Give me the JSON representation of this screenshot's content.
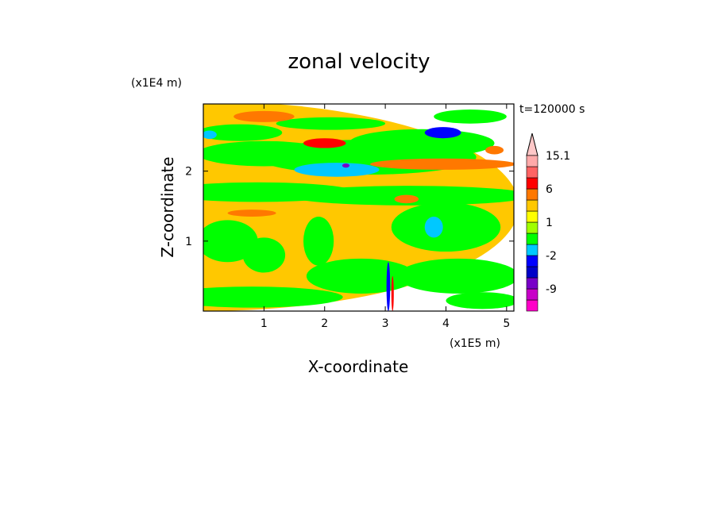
{
  "chart_data": {
    "type": "heatmap",
    "title": "zonal velocity",
    "time_label": "t=120000 s",
    "xlabel": "X-coordinate",
    "ylabel": "Z-coordinate",
    "x_unit": "(x1E5 m)",
    "y_unit": "(x1E4 m)",
    "xlim": [
      0,
      5.12
    ],
    "ylim": [
      0,
      2.96
    ],
    "x_ticks": [
      1,
      2,
      3,
      4,
      5
    ],
    "y_ticks": [
      1,
      2
    ],
    "colorbar": {
      "levels": [
        -12,
        -10.5,
        -9,
        -6.6,
        -4.5,
        -2,
        -1,
        0,
        1,
        2,
        4.5,
        6,
        8.5,
        12,
        15.1
      ],
      "colors": [
        "#ff00c8",
        "#c800c8",
        "#7800c8",
        "#0000c8",
        "#0000ff",
        "#00c8ff",
        "#00ff00",
        "#a0ff00",
        "#ffff00",
        "#ffc800",
        "#ff7800",
        "#ff0000",
        "#ff6464",
        "#ffaaaa",
        "#ffc8c8"
      ],
      "labeled_ticks": [
        "15.1",
        "6",
        "1",
        "-2",
        "-9"
      ]
    },
    "regions": [
      {
        "x": 0.0,
        "z": 1.5,
        "rx": 5.2,
        "rz": 1.5,
        "value": 1.5
      },
      {
        "x": 0.6,
        "z": 2.55,
        "rx": 0.7,
        "rz": 0.12,
        "value": -1.5
      },
      {
        "x": 2.1,
        "z": 2.68,
        "rx": 0.9,
        "rz": 0.09,
        "value": -1.5
      },
      {
        "x": 4.4,
        "z": 2.78,
        "rx": 0.6,
        "rz": 0.1,
        "value": -1.5
      },
      {
        "x": 3.6,
        "z": 2.4,
        "rx": 1.2,
        "rz": 0.2,
        "value": -1.5
      },
      {
        "x": 2.7,
        "z": 2.2,
        "rx": 1.8,
        "rz": 0.25,
        "value": -1.5
      },
      {
        "x": 1.0,
        "z": 2.25,
        "rx": 1.1,
        "rz": 0.18,
        "value": -1.5
      },
      {
        "x": 2.2,
        "z": 2.02,
        "rx": 0.7,
        "rz": 0.1,
        "value": -3
      },
      {
        "x": 2.35,
        "z": 2.08,
        "rx": 0.06,
        "rz": 0.03,
        "value": -10
      },
      {
        "x": 0.1,
        "z": 2.52,
        "rx": 0.12,
        "rz": 0.06,
        "value": -3
      },
      {
        "x": 3.95,
        "z": 2.55,
        "rx": 0.3,
        "rz": 0.08,
        "value": -5
      },
      {
        "x": 0.9,
        "z": 1.7,
        "rx": 1.6,
        "rz": 0.14,
        "value": -1.5
      },
      {
        "x": 3.4,
        "z": 1.65,
        "rx": 2.0,
        "rz": 0.14,
        "value": -1.5
      },
      {
        "x": 4.0,
        "z": 1.2,
        "rx": 0.9,
        "rz": 0.35,
        "value": -1.5
      },
      {
        "x": 3.8,
        "z": 1.2,
        "rx": 0.15,
        "rz": 0.15,
        "value": -3
      },
      {
        "x": 0.4,
        "z": 1.0,
        "rx": 0.5,
        "rz": 0.3,
        "value": -1.5
      },
      {
        "x": 1.0,
        "z": 0.8,
        "rx": 0.35,
        "rz": 0.25,
        "value": -1.5
      },
      {
        "x": 1.9,
        "z": 1.0,
        "rx": 0.25,
        "rz": 0.35,
        "value": -1.5
      },
      {
        "x": 2.6,
        "z": 0.5,
        "rx": 0.9,
        "rz": 0.25,
        "value": -1.5
      },
      {
        "x": 4.2,
        "z": 0.5,
        "rx": 1.0,
        "rz": 0.25,
        "value": -1.5
      },
      {
        "x": 0.8,
        "z": 0.2,
        "rx": 1.5,
        "rz": 0.15,
        "value": -1.5
      },
      {
        "x": 4.6,
        "z": 0.15,
        "rx": 0.6,
        "rz": 0.12,
        "value": -1.5
      },
      {
        "x": 1.0,
        "z": 2.78,
        "rx": 0.5,
        "rz": 0.08,
        "value": 2.5
      },
      {
        "x": 2.0,
        "z": 2.4,
        "rx": 0.35,
        "rz": 0.07,
        "value": 5
      },
      {
        "x": 3.95,
        "z": 2.1,
        "rx": 1.2,
        "rz": 0.08,
        "value": 2.5
      },
      {
        "x": 0.8,
        "z": 1.4,
        "rx": 0.4,
        "rz": 0.05,
        "value": 2.5
      },
      {
        "x": 3.35,
        "z": 1.6,
        "rx": 0.2,
        "rz": 0.06,
        "value": 2.5
      },
      {
        "x": 4.8,
        "z": 2.3,
        "rx": 0.15,
        "rz": 0.06,
        "value": 2.5
      },
      {
        "x": 3.05,
        "z": 0.35,
        "rx": 0.03,
        "rz": 0.35,
        "value": -6
      },
      {
        "x": 3.12,
        "z": 0.25,
        "rx": 0.02,
        "rz": 0.25,
        "value": 5
      }
    ]
  }
}
